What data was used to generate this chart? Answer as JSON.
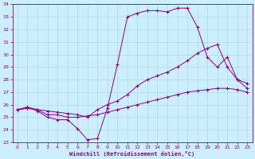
{
  "xlabel": "Windchill (Refroidissement éolien,°C)",
  "bg_color": "#cceeff",
  "line_color": "#880088",
  "grid_color": "#aadddd",
  "xlim": [
    -0.5,
    23.5
  ],
  "ylim": [
    23,
    34
  ],
  "xticks": [
    0,
    1,
    2,
    3,
    4,
    5,
    6,
    7,
    8,
    9,
    10,
    11,
    12,
    13,
    14,
    15,
    16,
    17,
    18,
    19,
    20,
    21,
    22,
    23
  ],
  "yticks": [
    23,
    24,
    25,
    26,
    27,
    28,
    29,
    30,
    31,
    32,
    33,
    34
  ],
  "line1_x": [
    0,
    1,
    2,
    3,
    4,
    5,
    6,
    7,
    8,
    9,
    10,
    11,
    12,
    13,
    14,
    15,
    16,
    17,
    18,
    19,
    20,
    21,
    22,
    23
  ],
  "line1_y": [
    25.6,
    25.8,
    25.6,
    25.2,
    25.2,
    25.0,
    25.0,
    25.1,
    25.2,
    25.4,
    25.6,
    25.8,
    26.0,
    26.2,
    26.4,
    26.6,
    26.8,
    27.0,
    27.1,
    27.2,
    27.3,
    27.3,
    27.2,
    27.0
  ],
  "line2_x": [
    0,
    1,
    2,
    3,
    4,
    5,
    6,
    7,
    8,
    9,
    10,
    11,
    12,
    13,
    14,
    15,
    16,
    17,
    18,
    19,
    20,
    21,
    22,
    23
  ],
  "line2_y": [
    25.6,
    25.7,
    25.6,
    25.5,
    25.4,
    25.3,
    25.2,
    25.0,
    25.6,
    26.0,
    26.3,
    26.8,
    27.5,
    28.0,
    28.3,
    28.6,
    29.0,
    29.5,
    30.1,
    30.5,
    30.8,
    29.0,
    28.0,
    27.7
  ],
  "line3_x": [
    0,
    1,
    2,
    3,
    4,
    5,
    6,
    7,
    8,
    9,
    10,
    11,
    12,
    13,
    14,
    15,
    16,
    17,
    18,
    19,
    20,
    21,
    22,
    23
  ],
  "line3_y": [
    25.6,
    25.8,
    25.5,
    25.0,
    24.8,
    24.8,
    24.1,
    23.2,
    23.3,
    25.7,
    29.2,
    33.0,
    33.3,
    33.5,
    33.5,
    33.4,
    33.7,
    33.7,
    32.2,
    29.8,
    29.0,
    29.8,
    28.0,
    27.3
  ]
}
